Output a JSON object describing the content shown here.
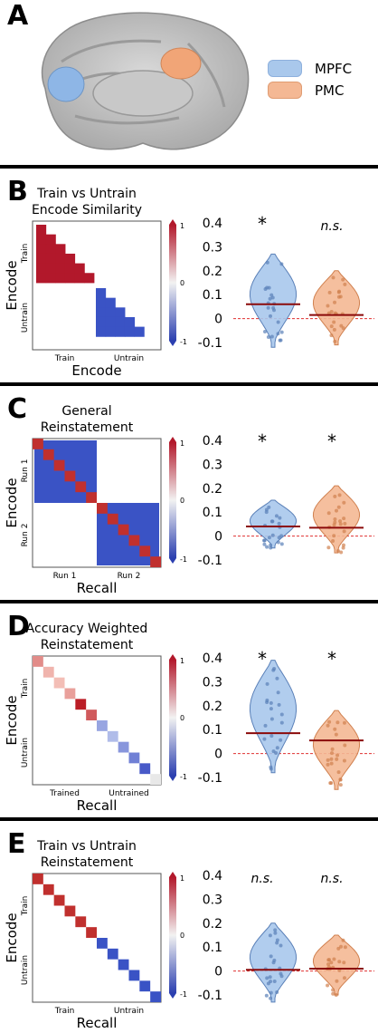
{
  "panel_a": {
    "letter": "A",
    "legend": [
      {
        "label": "MPFC",
        "color": "#a9c8ec"
      },
      {
        "label": "PMC",
        "color": "#f4b894"
      }
    ]
  },
  "colorbar": {
    "top": "1",
    "mid": "0",
    "bottom": "-1"
  },
  "colors": {
    "mpfc": "#a9c8ec",
    "pmc": "#f4b894",
    "mean_line": "#8b0a0a",
    "zero_line": "#e03030"
  },
  "panels": [
    {
      "letter": "B",
      "title_line1": "Train vs Untrain",
      "title_line2": "Encode Similarity",
      "ylabel": "Encode",
      "xlabel": "Encode",
      "row_ticks": [
        "Train",
        "Untrain"
      ],
      "col_ticks": [
        "Train",
        "Untrain"
      ],
      "sig_mpfc": "*",
      "sig_pmc": "n.s.",
      "yticks": [
        "0.4",
        "0.3",
        "0.2",
        "0.1",
        "0",
        "-0.1"
      ],
      "mpfc_mean": 0.06,
      "pmc_mean": 0.015
    },
    {
      "letter": "C",
      "title_line1": "General",
      "title_line2": "Reinstatement",
      "ylabel": "Encode",
      "xlabel": "Recall",
      "row_ticks": [
        "Run 1",
        "Run 2"
      ],
      "col_ticks": [
        "Run 1",
        "Run 2"
      ],
      "sig_mpfc": "*",
      "sig_pmc": "*",
      "yticks": [
        "0.4",
        "0.3",
        "0.2",
        "0.1",
        "0",
        "-0.1"
      ],
      "mpfc_mean": 0.04,
      "pmc_mean": 0.035
    },
    {
      "letter": "D",
      "title_line1": "Accuracy Weighted",
      "title_line2": "Reinstatement",
      "ylabel": "Encode",
      "xlabel": "Recall",
      "row_ticks": [
        "Train",
        "Untrain"
      ],
      "col_ticks": [
        "Trained",
        "Untrained"
      ],
      "sig_mpfc": "*",
      "sig_pmc": "*",
      "yticks": [
        "0.4",
        "0.3",
        "0.2",
        "0.1",
        "0",
        "-0.1"
      ],
      "mpfc_mean": 0.085,
      "pmc_mean": 0.055
    },
    {
      "letter": "E",
      "title_line1": "Train vs Untrain",
      "title_line2": "Reinstatement",
      "ylabel": "Encode",
      "xlabel": "Recall",
      "row_ticks": [
        "Train",
        "Untrain"
      ],
      "col_ticks": [
        "Train",
        "Untrain"
      ],
      "sig_mpfc": "n.s.",
      "sig_pmc": "n.s.",
      "yticks": [
        "0.4",
        "0.3",
        "0.2",
        "0.1",
        "0",
        "-0.1"
      ],
      "mpfc_mean": 0.005,
      "pmc_mean": 0.01
    }
  ]
}
